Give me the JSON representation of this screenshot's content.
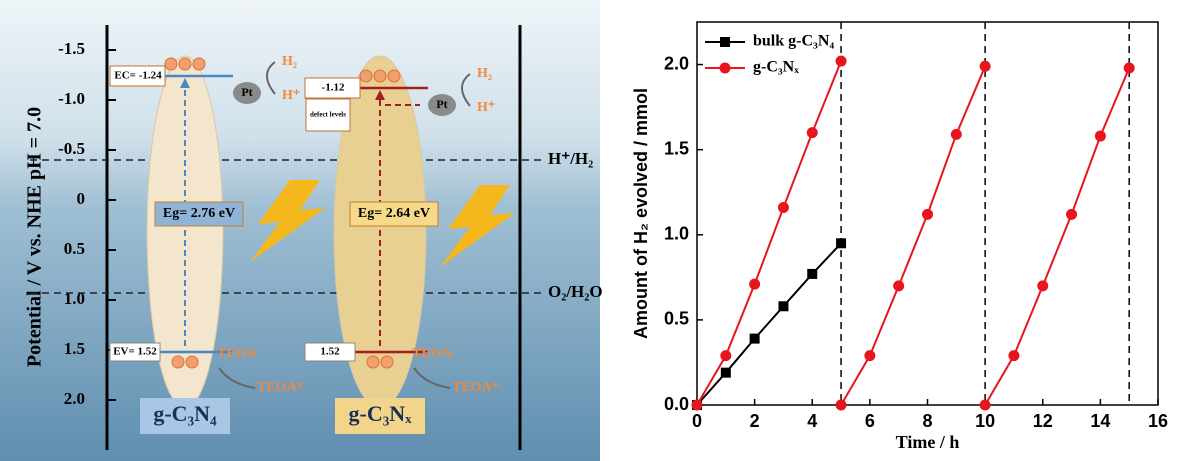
{
  "chart_data": [
    {
      "type": "band",
      "ylabel": "Potential  / V vs. NHE  pH = 7.0",
      "ylim": [
        -1.75,
        2.5
      ],
      "reversed": true,
      "yticks": [
        -1.5,
        {
          "value": -1,
          "label": "-1.0"
        },
        -0.5,
        0,
        0.5,
        {
          "value": 1,
          "label": "1.0"
        },
        1.5,
        {
          "value": 2,
          "label": "2.0"
        }
      ],
      "ref_lines": [
        {
          "value": -0.4,
          "label": "H⁺/H₂"
        },
        {
          "value": 0.93,
          "label": "O₂/H₂O"
        }
      ],
      "materials": [
        {
          "name": "g-C₃N₄",
          "cb": -1.24,
          "cb_label": "EC= -1.24",
          "vb": 1.52,
          "vb_label": "EV= 1.52",
          "gap": 2.76,
          "gap_label": "Eg= 2.76 eV",
          "color": "#4a86c8",
          "body": "#f4e6cc"
        },
        {
          "name": "g-C₃Nₓ",
          "cb": -1.12,
          "cb_label": "-1.12",
          "vb": 1.52,
          "vb_label": "1.52",
          "gap": 2.64,
          "gap_label": "Eg= 2.64 eV",
          "color": "#a11f1f",
          "body": "#e8cf92"
        }
      ],
      "cocatalyst": "Pt",
      "products": [
        "H₂",
        "H⁺"
      ],
      "sacrificial": [
        "TEOA",
        "TEOA*"
      ],
      "defect_label": "defect levels"
    },
    {
      "type": "line",
      "xlabel": "Time / h",
      "ylabel": "Amount of H₂ evolved / mmol",
      "xlim": [
        0,
        16
      ],
      "xticks": [
        0,
        2,
        4,
        6,
        8,
        10,
        12,
        14,
        16
      ],
      "ylim": [
        0,
        2.25
      ],
      "yticks": [
        {
          "value": 0,
          "label": "0.0"
        },
        0.5,
        {
          "value": 1,
          "label": "1.0"
        },
        1.5,
        {
          "value": 2,
          "label": "2.0"
        }
      ],
      "vlines": [
        5,
        10,
        15
      ],
      "legend": "top-left",
      "series": [
        {
          "name": "bulk g-C₃N₄",
          "color": "#000000",
          "marker": "square",
          "x": [
            0,
            1,
            2,
            3,
            4,
            5
          ],
          "values": [
            0,
            0.19,
            0.39,
            0.58,
            0.77,
            0.95
          ]
        },
        {
          "name": "g-C₃Nₓ",
          "color": "#e8141e",
          "marker": "circle",
          "x": [
            0,
            1,
            2,
            3,
            4,
            5,
            null,
            5,
            6,
            7,
            8,
            9,
            10,
            null,
            10,
            11,
            12,
            13,
            14,
            15
          ],
          "values": [
            0,
            0.29,
            0.71,
            1.16,
            1.6,
            2.02,
            null,
            0,
            0.29,
            0.7,
            1.12,
            1.59,
            1.99,
            null,
            0,
            0.29,
            0.7,
            1.12,
            1.58,
            1.98
          ]
        }
      ]
    }
  ]
}
